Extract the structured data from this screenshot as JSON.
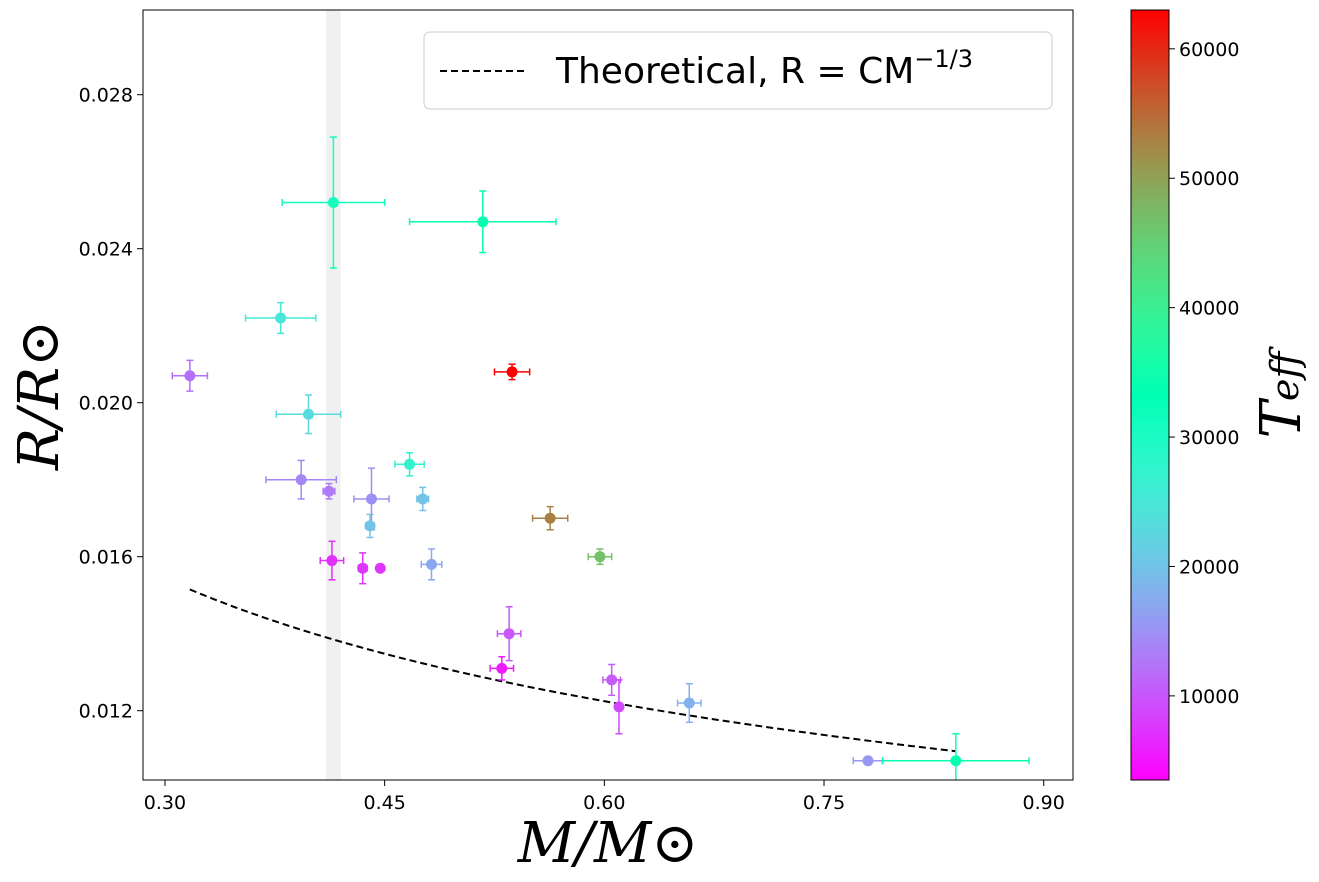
{
  "chart_data": {
    "type": "scatter",
    "xlabel": "M/M⊙",
    "ylabel": "R/R⊙",
    "xlim": [
      0.285,
      0.92
    ],
    "ylim": [
      0.0102,
      0.0302
    ],
    "x_ticks": [
      0.3,
      0.45,
      0.6,
      0.75,
      0.9
    ],
    "x_tick_labels": [
      "0.30",
      "0.45",
      "0.60",
      "0.75",
      "0.90"
    ],
    "y_ticks": [
      0.012,
      0.016,
      0.02,
      0.024,
      0.028
    ],
    "y_tick_labels": [
      "0.012",
      "0.016",
      "0.020",
      "0.024",
      "0.028"
    ],
    "shaded_band": {
      "x_range": [
        0.41,
        0.42
      ],
      "color": "#d3d3d3"
    },
    "legend": {
      "placement": "top-right",
      "entries": [
        {
          "label": "Theoretical, R = CM",
          "exponent": "−1/3",
          "style": "dashed"
        }
      ]
    },
    "theoretical_curve": {
      "C": 0.01033,
      "exponent": -0.3333,
      "x_range": [
        0.317,
        0.84
      ],
      "color": "#000000",
      "style": "dashed"
    },
    "colorbar": {
      "label": "T",
      "label_subscript": "eff",
      "range": [
        3500,
        63000
      ],
      "ticks": [
        10000,
        20000,
        30000,
        40000,
        50000,
        60000
      ],
      "tick_labels": [
        "10000",
        "20000",
        "30000",
        "40000",
        "50000",
        "60000"
      ],
      "colormap": "rainbow"
    },
    "points": [
      {
        "x": 0.317,
        "y": 0.0207,
        "xerr": 0.012,
        "yerr": 0.0004,
        "teff": 12000
      },
      {
        "x": 0.415,
        "y": 0.0252,
        "xerr": 0.035,
        "yerr": 0.0017,
        "teff": 31000
      },
      {
        "x": 0.517,
        "y": 0.0247,
        "xerr": 0.05,
        "yerr": 0.0008,
        "teff": 34000
      },
      {
        "x": 0.379,
        "y": 0.0222,
        "xerr": 0.024,
        "yerr": 0.0004,
        "teff": 25000
      },
      {
        "x": 0.537,
        "y": 0.0208,
        "xerr": 0.012,
        "yerr": 0.0002,
        "teff": 63000
      },
      {
        "x": 0.398,
        "y": 0.0197,
        "xerr": 0.022,
        "yerr": 0.0005,
        "teff": 23000
      },
      {
        "x": 0.467,
        "y": 0.0184,
        "xerr": 0.01,
        "yerr": 0.0003,
        "teff": 27000
      },
      {
        "x": 0.393,
        "y": 0.018,
        "xerr": 0.024,
        "yerr": 0.0005,
        "teff": 14000
      },
      {
        "x": 0.412,
        "y": 0.0177,
        "xerr": 0.004,
        "yerr": 0.0002,
        "teff": 13000
      },
      {
        "x": 0.441,
        "y": 0.0175,
        "xerr": 0.012,
        "yerr": 0.0008,
        "teff": 15000
      },
      {
        "x": 0.476,
        "y": 0.0175,
        "xerr": 0.004,
        "yerr": 0.0003,
        "teff": 20000
      },
      {
        "x": 0.44,
        "y": 0.0168,
        "xerr": 0.003,
        "yerr": 0.0003,
        "teff": 20000
      },
      {
        "x": 0.563,
        "y": 0.017,
        "xerr": 0.012,
        "yerr": 0.0003,
        "teff": 53000
      },
      {
        "x": 0.414,
        "y": 0.0159,
        "xerr": 0.008,
        "yerr": 0.0005,
        "teff": 7000
      },
      {
        "x": 0.435,
        "y": 0.0157,
        "xerr": 0.003,
        "yerr": 0.0004,
        "teff": 7500
      },
      {
        "x": 0.447,
        "y": 0.0157,
        "xerr": 0.0,
        "yerr": 0.0,
        "teff": 7500
      },
      {
        "x": 0.482,
        "y": 0.0158,
        "xerr": 0.007,
        "yerr": 0.0004,
        "teff": 17000
      },
      {
        "x": 0.597,
        "y": 0.016,
        "xerr": 0.008,
        "yerr": 0.0002,
        "teff": 47000
      },
      {
        "x": 0.535,
        "y": 0.014,
        "xerr": 0.008,
        "yerr": 0.0007,
        "teff": 10000
      },
      {
        "x": 0.53,
        "y": 0.0131,
        "xerr": 0.008,
        "yerr": 0.0003,
        "teff": 5500
      },
      {
        "x": 0.605,
        "y": 0.0128,
        "xerr": 0.006,
        "yerr": 0.0004,
        "teff": 10500
      },
      {
        "x": 0.61,
        "y": 0.0121,
        "xerr": 0.0,
        "yerr": 0.0007,
        "teff": 9000
      },
      {
        "x": 0.658,
        "y": 0.0122,
        "xerr": 0.008,
        "yerr": 0.0005,
        "teff": 18000
      },
      {
        "x": 0.78,
        "y": 0.0107,
        "xerr": 0.01,
        "yerr": 0.0,
        "teff": 15500
      },
      {
        "x": 0.84,
        "y": 0.0107,
        "xerr": 0.05,
        "yerr": 0.0007,
        "teff": 34000
      }
    ]
  }
}
